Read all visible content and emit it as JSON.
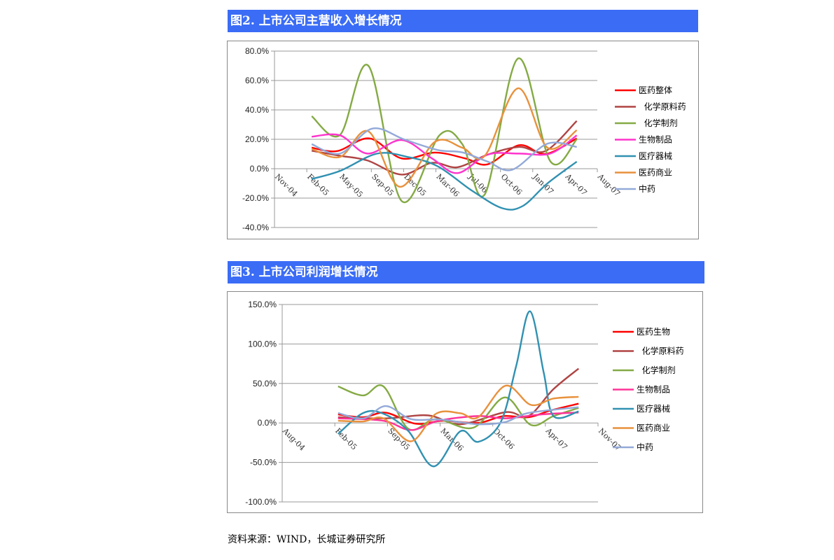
{
  "banners": [
    "图2. 上市公司主营收入增长情况",
    "图3. 上市公司利润增长情况"
  ],
  "source": "资料来源：WIND，长城证券研究所",
  "chart_data": [
    {
      "type": "line",
      "title": "图2. 上市公司主营收入增长情况",
      "x_unit": "months since Nov-04",
      "xlim": [
        0,
        33
      ],
      "xtick_labels": [
        "Nov-04",
        "Feb-05",
        "May-05",
        "Sep-05",
        "Dec-05",
        "Mar-06",
        "Jul-06",
        "Oct-06",
        "Jan-07",
        "Apr-07",
        "Aug-07"
      ],
      "ylim": [
        -40,
        80
      ],
      "ytick_labels": [
        "80.0%",
        "60.0%",
        "40.0%",
        "20.0%",
        "0.0%",
        "-20.0%",
        "-40.0%"
      ],
      "ytick_values": [
        80,
        60,
        40,
        20,
        0,
        -20,
        -40
      ],
      "grid": true,
      "legend": "right",
      "series": [
        {
          "name": "医药整体",
          "color": "#ff0000",
          "points": [
            [
              3.8,
              14.3
            ],
            [
              6.4,
              12
            ],
            [
              9.7,
              20.6
            ],
            [
              13,
              7
            ],
            [
              16.4,
              11
            ],
            [
              19.5,
              7
            ],
            [
              21.8,
              3
            ],
            [
              25,
              16
            ],
            [
              27.7,
              10
            ],
            [
              30.9,
              20.6
            ]
          ]
        },
        {
          "name": "  化学原料药",
          "color": "#b04444",
          "points": [
            [
              3.8,
              12.2
            ],
            [
              6.7,
              8.8
            ],
            [
              9.5,
              5.6
            ],
            [
              13,
              -4
            ],
            [
              16.1,
              4
            ],
            [
              18.7,
              1
            ],
            [
              21.8,
              9.6
            ],
            [
              25,
              14.8
            ],
            [
              27.7,
              12
            ],
            [
              30.9,
              32.5
            ]
          ]
        },
        {
          "name": "  化学制剂",
          "color": "#84aa44",
          "points": [
            [
              3.8,
              35.7
            ],
            [
              6.7,
              23
            ],
            [
              9.6,
              70
            ],
            [
              13,
              -22
            ],
            [
              16.9,
              23
            ],
            [
              19.2,
              16.7
            ],
            [
              21.5,
              -17.4
            ],
            [
              24.9,
              75
            ],
            [
              28.2,
              5
            ],
            [
              30.9,
              20
            ]
          ]
        },
        {
          "name": "生物制品",
          "color": "#ff33cc",
          "points": [
            [
              3.8,
              21.8
            ],
            [
              6.7,
              22.7
            ],
            [
              9.5,
              10.3
            ],
            [
              13,
              19.5
            ],
            [
              16.1,
              7
            ],
            [
              18.7,
              -3
            ],
            [
              21.8,
              9.6
            ],
            [
              25,
              10.3
            ],
            [
              28.2,
              10.3
            ],
            [
              30.9,
              22.7
            ]
          ]
        },
        {
          "name": "医疗器械",
          "color": "#3191b1",
          "points": [
            [
              3.8,
              -7
            ],
            [
              6.7,
              -1.5
            ],
            [
              10.5,
              10.3
            ],
            [
              13.6,
              8
            ],
            [
              16.7,
              1.6
            ],
            [
              20.2,
              -15
            ],
            [
              23.3,
              -26.9
            ],
            [
              25.4,
              -25.3
            ],
            [
              27.9,
              -10
            ],
            [
              30.9,
              4.8
            ]
          ]
        },
        {
          "name": "医药商业",
          "color": "#e8913c",
          "points": [
            [
              3.8,
              13.5
            ],
            [
              6.7,
              8
            ],
            [
              9.6,
              25.4
            ],
            [
              12.8,
              -12.3
            ],
            [
              16.4,
              18.3
            ],
            [
              19.2,
              14.3
            ],
            [
              21.5,
              8.8
            ],
            [
              24.9,
              54.7
            ],
            [
              27.9,
              14.3
            ],
            [
              30.9,
              26.2
            ]
          ]
        },
        {
          "name": "中药",
          "color": "#93a9d8",
          "points": [
            [
              3.8,
              16.7
            ],
            [
              6.7,
              10.3
            ],
            [
              10,
              27.3
            ],
            [
              13.3,
              19.8
            ],
            [
              16.7,
              12.7
            ],
            [
              19.2,
              11.1
            ],
            [
              21.8,
              4.8
            ],
            [
              24.3,
              -0.7
            ],
            [
              27.9,
              17
            ],
            [
              30.9,
              14.8
            ]
          ]
        }
      ]
    },
    {
      "type": "line",
      "title": "图3. 上市公司利润增长情况",
      "x_unit": "months since Aug-04",
      "xlim": [
        0,
        39
      ],
      "xtick_labels": [
        "Aug-04",
        "Feb-05",
        "Sep-05",
        "Mar-06",
        "Oct-06",
        "Apr-07",
        "Nov-07"
      ],
      "ylim": [
        -100,
        150
      ],
      "ytick_labels": [
        "150.0%",
        "100.0%",
        "50.0%",
        "0.0%",
        "-50.0%",
        "-100.0%"
      ],
      "ytick_values": [
        150,
        100,
        50,
        0,
        -50,
        -100
      ],
      "grid": true,
      "legend": "right",
      "series": [
        {
          "name": "医药生物",
          "color": "#ff0000",
          "points": [
            [
              6.9,
              10.8
            ],
            [
              10,
              7.2
            ],
            [
              12.8,
              13
            ],
            [
              16.5,
              -1
            ],
            [
              19.9,
              2.8
            ],
            [
              24.2,
              0
            ],
            [
              27.3,
              8.7
            ],
            [
              30.4,
              7.2
            ],
            [
              33.2,
              16
            ],
            [
              36.6,
              24.4
            ]
          ]
        },
        {
          "name": "  化学原料药",
          "color": "#b04444",
          "points": [
            [
              6.9,
              7.2
            ],
            [
              12.8,
              5.8
            ],
            [
              18,
              9.6
            ],
            [
              22,
              -1.7
            ],
            [
              27.6,
              13.7
            ],
            [
              30.4,
              8.7
            ],
            [
              33.5,
              42.8
            ],
            [
              36.6,
              68.8
            ]
          ]
        },
        {
          "name": "  化学制剂",
          "color": "#84aa44",
          "points": [
            [
              6.9,
              46.3
            ],
            [
              10,
              34.8
            ],
            [
              12.5,
              46.3
            ],
            [
              15.6,
              -7.6
            ],
            [
              19,
              4.9
            ],
            [
              23.6,
              -6
            ],
            [
              27.5,
              32.4
            ],
            [
              30.7,
              -2.5
            ],
            [
              33.5,
              8.7
            ],
            [
              36.6,
              19
            ]
          ]
        },
        {
          "name": "生物制品",
          "color": "#ff3399",
          "points": [
            [
              6.9,
              5.8
            ],
            [
              12.5,
              2.8
            ],
            [
              15.9,
              -9
            ],
            [
              19.3,
              2.8
            ],
            [
              24.2,
              8.7
            ],
            [
              27.6,
              5.8
            ],
            [
              32,
              10.8
            ],
            [
              36.6,
              13.2
            ]
          ]
        },
        {
          "name": "医疗器械",
          "color": "#3191b1",
          "points": [
            [
              6.9,
              -14
            ],
            [
              10,
              12.6
            ],
            [
              12.5,
              11.7
            ],
            [
              15.6,
              -10.5
            ],
            [
              18.7,
              -55
            ],
            [
              22,
              -10.5
            ],
            [
              24.2,
              -23.9
            ],
            [
              27,
              1.3
            ],
            [
              28.9,
              72.4
            ],
            [
              30.6,
              141.4
            ],
            [
              32.3,
              63.5
            ],
            [
              33.5,
              8.7
            ],
            [
              36.6,
              14.6
            ]
          ]
        },
        {
          "name": "医药商业",
          "color": "#e8913c",
          "points": [
            [
              6.9,
              2.8
            ],
            [
              10,
              1.9
            ],
            [
              12.5,
              5.8
            ],
            [
              15.9,
              -23.3
            ],
            [
              19,
              11.7
            ],
            [
              22,
              12.3
            ],
            [
              24.2,
              7.2
            ],
            [
              27.6,
              47.2
            ],
            [
              30.7,
              22.9
            ],
            [
              33.5,
              30.9
            ],
            [
              36.6,
              33
            ]
          ]
        },
        {
          "name": "中药",
          "color": "#93a9d8",
          "points": [
            [
              6.9,
              12.6
            ],
            [
              10,
              5.8
            ],
            [
              12.8,
              21.4
            ],
            [
              15.9,
              4.9
            ],
            [
              19.6,
              4.3
            ],
            [
              24.2,
              -1.7
            ],
            [
              27.6,
              1.3
            ],
            [
              30.4,
              12.6
            ],
            [
              36.6,
              20
            ]
          ]
        }
      ]
    }
  ]
}
